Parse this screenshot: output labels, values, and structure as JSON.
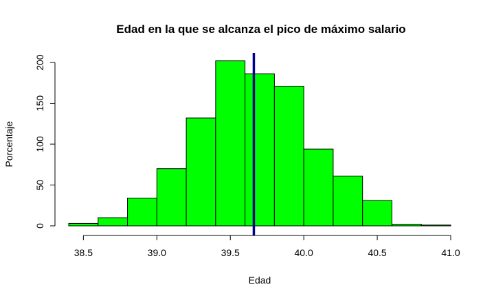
{
  "chart_data": {
    "type": "bar",
    "title": "Edad en la que se alcanza el pico de máximo salario",
    "xlabel": "Edad",
    "ylabel": "Porcentaje",
    "bin_edges": [
      38.4,
      38.6,
      38.8,
      39.0,
      39.2,
      39.4,
      39.6,
      39.8,
      40.0,
      40.2,
      40.4,
      40.6,
      40.8,
      41.0
    ],
    "values": [
      3,
      10,
      34,
      70,
      132,
      202,
      186,
      171,
      94,
      61,
      31,
      2,
      1
    ],
    "xlim": [
      38.4,
      41.0
    ],
    "ylim": [
      0,
      210
    ],
    "xticks": [
      38.5,
      39.0,
      39.5,
      40.0,
      40.5,
      41.0
    ],
    "xtick_labels": [
      "38.5",
      "39.0",
      "39.5",
      "40.0",
      "40.5",
      "41.0"
    ],
    "yticks": [
      0,
      50,
      100,
      150,
      200
    ],
    "ytick_labels": [
      "0",
      "50",
      "100",
      "150",
      "200"
    ],
    "bar_color": "#00ff00",
    "reference_line": {
      "x": 39.66,
      "color": "#00008b"
    },
    "grid": false,
    "legend": "none"
  }
}
